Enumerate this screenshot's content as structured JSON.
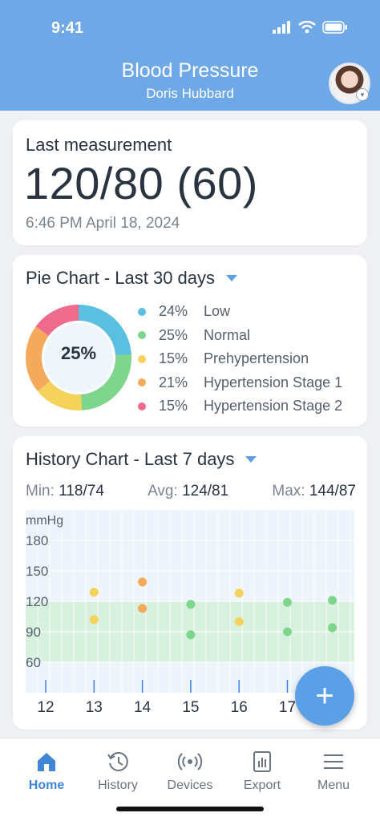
{
  "status_bar": {
    "time": "9:41"
  },
  "header": {
    "title": "Blood Pressure",
    "subtitle": "Doris Hubbard"
  },
  "last_measurement": {
    "label": "Last measurement",
    "value": "120/80 (60)",
    "timestamp": "6:46 PM April 18, 2024"
  },
  "pie_card": {
    "title": "Pie Chart - Last 30 days",
    "center_label": "25%",
    "legend": [
      {
        "pct": "24%",
        "label": "Low",
        "color": "#5bbfe0"
      },
      {
        "pct": "25%",
        "label": "Normal",
        "color": "#7ed68c"
      },
      {
        "pct": "15%",
        "label": "Prehypertension",
        "color": "#f5d35a"
      },
      {
        "pct": "21%",
        "label": "Hypertension Stage 1",
        "color": "#f5a95a"
      },
      {
        "pct": "15%",
        "label": "Hypertension Stage 2",
        "color": "#ee6b8d"
      }
    ]
  },
  "history_card": {
    "title": "History Chart - Last 7 days",
    "stats": [
      {
        "label": "Min:",
        "value": "118/74"
      },
      {
        "label": "Avg:",
        "value": "124/81"
      },
      {
        "label": "Max:",
        "value": "144/87"
      }
    ]
  },
  "chart_data": [
    {
      "type": "pie",
      "categories": [
        "Low",
        "Normal",
        "Prehypertension",
        "Hypertension Stage 1",
        "Hypertension Stage 2"
      ],
      "values": [
        24,
        25,
        15,
        21,
        15
      ],
      "colors": [
        "#5bbfe0",
        "#7ed68c",
        "#f5d35a",
        "#f5a95a",
        "#ee6b8d"
      ],
      "center_label": "25%"
    },
    {
      "type": "scatter",
      "ylabel": "mmHg",
      "yticks": [
        180,
        150,
        120,
        90,
        60
      ],
      "ylim": [
        30,
        210
      ],
      "xticks": [
        12,
        13,
        14,
        15,
        16,
        17
      ],
      "normal_band": [
        60,
        120
      ],
      "points": [
        {
          "x": 13,
          "y": 129,
          "color": "#f5d35a"
        },
        {
          "x": 13,
          "y": 102,
          "color": "#f5d35a"
        },
        {
          "x": 14,
          "y": 139,
          "color": "#f5a95a"
        },
        {
          "x": 14,
          "y": 113,
          "color": "#f5a95a"
        },
        {
          "x": 15,
          "y": 117,
          "color": "#7ed68c"
        },
        {
          "x": 15,
          "y": 87,
          "color": "#7ed68c"
        },
        {
          "x": 16,
          "y": 128,
          "color": "#f5d35a"
        },
        {
          "x": 16,
          "y": 100,
          "color": "#f5d35a"
        },
        {
          "x": 17,
          "y": 119,
          "color": "#7ed68c"
        },
        {
          "x": 17,
          "y": 90,
          "color": "#7ed68c"
        },
        {
          "x": 17.93,
          "y": 121,
          "color": "#7ed68c"
        },
        {
          "x": 17.93,
          "y": 94,
          "color": "#7ed68c"
        }
      ]
    }
  ],
  "fab": {
    "label": "+"
  },
  "tabbar": [
    {
      "label": "Home",
      "icon": "home-icon",
      "active": true
    },
    {
      "label": "History",
      "icon": "history-icon"
    },
    {
      "label": "Devices",
      "icon": "devices-icon"
    },
    {
      "label": "Export",
      "icon": "export-icon"
    },
    {
      "label": "Menu",
      "icon": "menu-icon"
    }
  ]
}
